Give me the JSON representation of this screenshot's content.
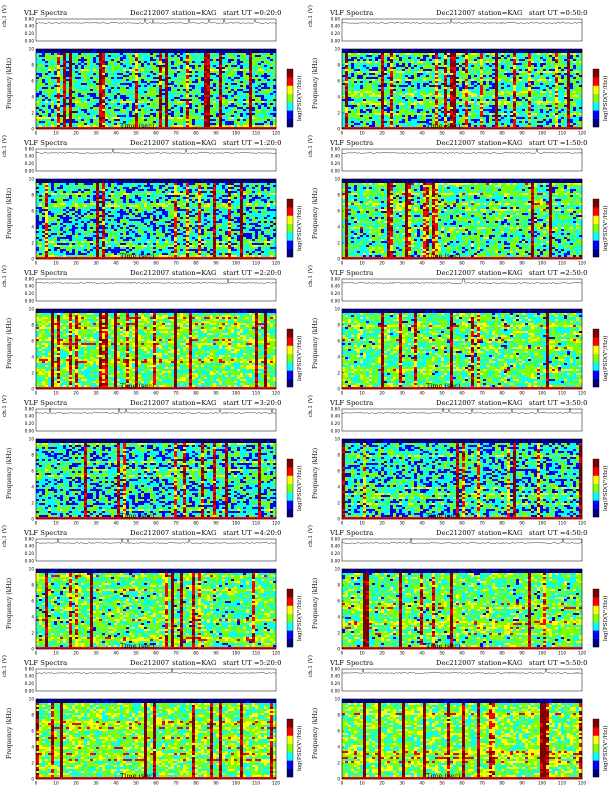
{
  "chart_data": {
    "type": "heatmap",
    "title": "VLF Spectra",
    "date": "Dec212007",
    "station": "station=KAG",
    "xlabel": "Time (sec)",
    "ylabel": "Frequency (kHz)",
    "ch_label": "ch.1 (V)",
    "colorbar_label": "log(PSD(V²/Hz))",
    "xlim": [
      0,
      120
    ],
    "ylim": [
      0,
      10
    ],
    "x_ticks": [
      0,
      10,
      20,
      30,
      40,
      50,
      60,
      70,
      80,
      90,
      100,
      110,
      120
    ],
    "y_ticks": [
      0,
      2,
      4,
      6,
      8,
      10
    ],
    "ch_ticks": [
      "0.00",
      "0.20",
      "0.40",
      "0.60"
    ],
    "colormap": [
      "#00007f",
      "#0000ff",
      "#00ffff",
      "#7fff00",
      "#ffff00",
      "#ff0000",
      "#7f0000"
    ],
    "panels": [
      {
        "start_ut": "start UT =0:20:0",
        "level": 0.35
      },
      {
        "start_ut": "start UT =0:50:0",
        "level": 0.32
      },
      {
        "start_ut": "start UT =1:20:0",
        "level": 0.3
      },
      {
        "start_ut": "start UT =1:50:0",
        "level": 0.4
      },
      {
        "start_ut": "start UT =2:20:0",
        "level": 0.48
      },
      {
        "start_ut": "start UT =2:50:0",
        "level": 0.45
      },
      {
        "start_ut": "start UT =3:20:0",
        "level": 0.3
      },
      {
        "start_ut": "start UT =3:50:0",
        "level": 0.3
      },
      {
        "start_ut": "start UT =4:20:0",
        "level": 0.45
      },
      {
        "start_ut": "start UT =4:50:0",
        "level": 0.45
      },
      {
        "start_ut": "start UT =5:20:0",
        "level": 0.5
      },
      {
        "start_ut": "start UT =5:50:0",
        "level": 0.52
      }
    ]
  }
}
